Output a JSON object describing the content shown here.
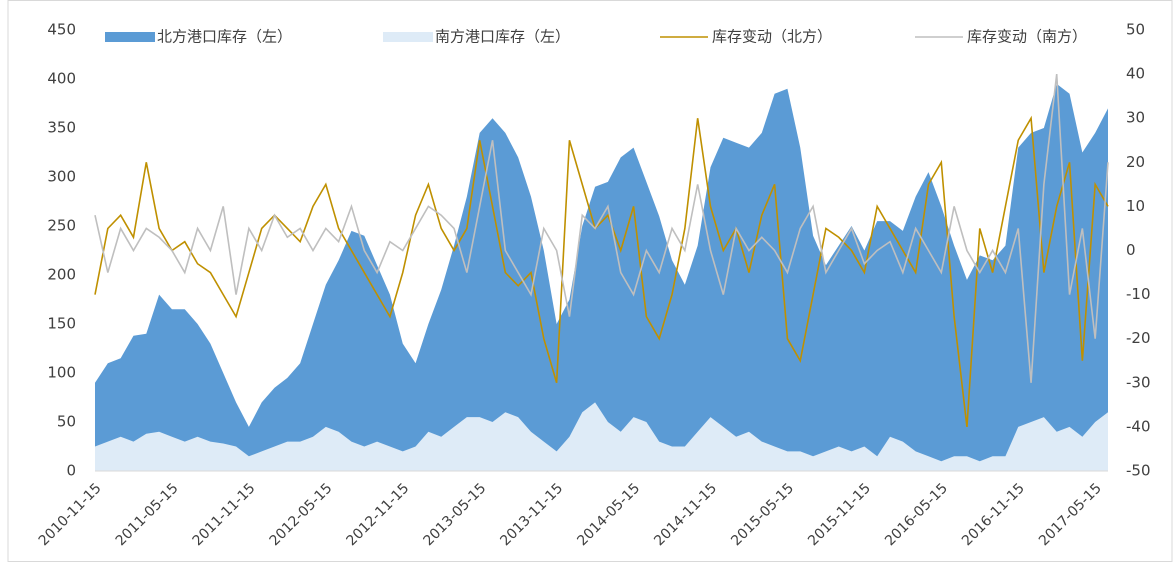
{
  "chart_data": {
    "type": "area",
    "categories": [
      "2010-11-15",
      null,
      null,
      null,
      null,
      null,
      "2011-05-15",
      null,
      null,
      null,
      null,
      null,
      "2011-11-15",
      null,
      null,
      null,
      null,
      null,
      "2012-05-15",
      null,
      null,
      null,
      null,
      null,
      "2012-11-15",
      null,
      null,
      null,
      null,
      null,
      "2013-05-15",
      null,
      null,
      null,
      null,
      null,
      "2013-11-15",
      null,
      null,
      null,
      null,
      null,
      "2014-05-15",
      null,
      null,
      null,
      null,
      null,
      "2014-11-15",
      null,
      null,
      null,
      null,
      null,
      "2015-05-15",
      null,
      null,
      null,
      null,
      null,
      "2015-11-15",
      null,
      null,
      null,
      null,
      null,
      "2016-05-15",
      null,
      null,
      null,
      null,
      null,
      "2016-11-15",
      null,
      null,
      null,
      null,
      null,
      "2017-05-15",
      null
    ],
    "series": [
      {
        "name": "北方港口库存（左）",
        "type": "area",
        "color": "#5b9bd5",
        "values": [
          90,
          110,
          115,
          138,
          140,
          180,
          165,
          165,
          150,
          130,
          100,
          70,
          45,
          70,
          85,
          95,
          110,
          150,
          190,
          215,
          245,
          240,
          210,
          180,
          130,
          110,
          150,
          185,
          230,
          280,
          345,
          360,
          345,
          320,
          280,
          225,
          150,
          175,
          250,
          290,
          295,
          320,
          330,
          295,
          260,
          215,
          190,
          230,
          310,
          340,
          335,
          330,
          345,
          385,
          390,
          330,
          240,
          210,
          230,
          250,
          225,
          255,
          255,
          245,
          280,
          305,
          270,
          230,
          195,
          220,
          215,
          230,
          330,
          345,
          350,
          395,
          385,
          325,
          345,
          370
        ]
      },
      {
        "name": "南方港口库存（左）",
        "type": "area",
        "color": "#deebf7",
        "values": [
          25,
          30,
          35,
          30,
          38,
          40,
          35,
          30,
          35,
          30,
          28,
          25,
          15,
          20,
          25,
          30,
          30,
          35,
          45,
          40,
          30,
          25,
          30,
          25,
          20,
          25,
          40,
          35,
          45,
          55,
          55,
          50,
          60,
          55,
          40,
          30,
          20,
          35,
          60,
          70,
          50,
          40,
          55,
          50,
          30,
          25,
          25,
          40,
          55,
          45,
          35,
          40,
          30,
          25,
          20,
          20,
          15,
          20,
          25,
          20,
          25,
          15,
          35,
          30,
          20,
          15,
          10,
          15,
          15,
          10,
          15,
          15,
          45,
          50,
          55,
          40,
          45,
          35,
          50,
          60
        ]
      },
      {
        "name": "库存变动（北方）",
        "type": "line",
        "axis": "y2",
        "color": "#bf9000",
        "values": [
          -10,
          5,
          8,
          3,
          20,
          5,
          0,
          2,
          -3,
          -5,
          -10,
          -15,
          -5,
          5,
          8,
          5,
          2,
          10,
          15,
          5,
          0,
          -5,
          -10,
          -15,
          -5,
          8,
          15,
          5,
          0,
          5,
          25,
          10,
          -5,
          -8,
          -5,
          -20,
          -30,
          25,
          15,
          5,
          8,
          0,
          10,
          -15,
          -20,
          -10,
          5,
          30,
          10,
          0,
          5,
          -5,
          8,
          15,
          -20,
          -25,
          -10,
          5,
          3,
          0,
          -5,
          10,
          5,
          0,
          -5,
          15,
          20,
          -15,
          -40,
          5,
          -5,
          10,
          25,
          30,
          -5,
          10,
          20,
          -25,
          15,
          10
        ]
      },
      {
        "name": "库存变动（南方）",
        "type": "line",
        "axis": "y2",
        "color": "#bfbfbf",
        "values": [
          8,
          -5,
          5,
          0,
          5,
          3,
          0,
          -5,
          5,
          0,
          10,
          -10,
          5,
          0,
          8,
          3,
          5,
          0,
          5,
          2,
          10,
          0,
          -5,
          2,
          0,
          5,
          10,
          8,
          5,
          -5,
          10,
          25,
          0,
          -5,
          -10,
          5,
          0,
          -15,
          8,
          5,
          10,
          -5,
          -10,
          0,
          -5,
          5,
          0,
          15,
          0,
          -10,
          5,
          0,
          3,
          0,
          -5,
          5,
          10,
          -5,
          0,
          5,
          -3,
          0,
          2,
          -5,
          5,
          0,
          -5,
          10,
          0,
          -5,
          0,
          -5,
          5,
          -30,
          15,
          40,
          -10,
          5,
          -20,
          20
        ]
      }
    ],
    "ylim": [
      0,
      450
    ],
    "yticks": [
      0,
      50,
      100,
      150,
      200,
      250,
      300,
      350,
      400,
      450
    ],
    "y2lim": [
      -50,
      50
    ],
    "y2ticks": [
      -50,
      -40,
      -30,
      -20,
      -10,
      0,
      10,
      20,
      30,
      40,
      50
    ],
    "legend": "top"
  }
}
